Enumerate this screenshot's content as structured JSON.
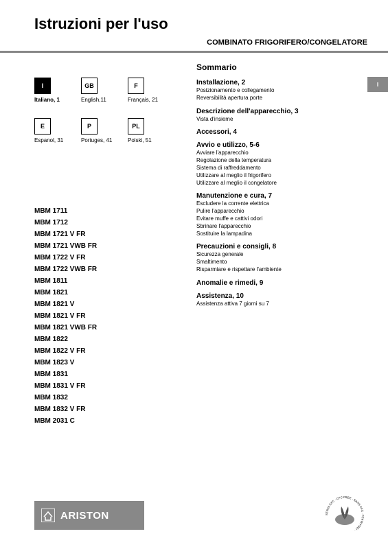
{
  "title": "Istruzioni per l'uso",
  "subtitle": "COMBINATO FRIGORIFERO/CONGELATORE",
  "side_tab": "I",
  "languages": [
    {
      "code": "I",
      "label": "Italiano, 1",
      "active": true
    },
    {
      "code": "GB",
      "label": "English,11",
      "active": false
    },
    {
      "code": "F",
      "label": "Français, 21",
      "active": false
    },
    {
      "code": "E",
      "label": "Espanol, 31",
      "active": false
    },
    {
      "code": "P",
      "label": "Portuges, 41",
      "active": false
    },
    {
      "code": "PL",
      "label": "Polski, 51",
      "active": false
    }
  ],
  "models": [
    "MBM 1711",
    "MBM 1712",
    "MBM 1721 V FR",
    "MBM 1721 VWB FR",
    "MBM 1722 V FR",
    "MBM 1722 VWB FR",
    "MBM 1811",
    "MBM 1821",
    "MBM 1821 V",
    "MBM 1821 V FR",
    "MBM 1821 VWB FR",
    "MBM 1822",
    "MBM 1822 V FR",
    "MBM 1823 V",
    "MBM 1831",
    "MBM 1831 V FR",
    "MBM 1832",
    "MBM 1832 V FR",
    "MBM 2031 C"
  ],
  "summary_title": "Sommario",
  "sections": [
    {
      "head": "Installazione, 2",
      "items": [
        "Posizionamento e collegamento",
        "Reversibilità apertura porte"
      ]
    },
    {
      "head": "Descrizione dell'apparecchio, 3",
      "items": [
        "Vista d'insieme"
      ]
    },
    {
      "head": "Accessori, 4",
      "items": []
    },
    {
      "head": "Avvio e utilizzo, 5-6",
      "items": [
        "Avviare l'apparecchio",
        "Regolazione della temperatura",
        "Sistema di raffreddamento",
        "Utilizzare al meglio il frigorifero",
        "Utilizzare al meglio il congelatore"
      ]
    },
    {
      "head": "Manutenzione e cura, 7",
      "items": [
        "Escludere la corrente elettrica",
        "Pulire l'apparecchio",
        "Evitare muffe e cattivi odori",
        "Sbrinare l'apparecchio",
        "Sostituire la lampadina"
      ]
    },
    {
      "head": "Precauzioni e consigli, 8",
      "items": [
        "Sicurezza generale",
        "Smaltimento",
        "Risparmiare e rispettare l'ambiente"
      ]
    },
    {
      "head": "Anomalie e rimedi, 9",
      "items": []
    },
    {
      "head": "Assistenza, 10",
      "items": [
        "Assistenza attiva 7 giorni su 7"
      ]
    }
  ],
  "brand": "ARISTON",
  "eco_text": "SENZA CFC · CFC FREE · SANS CFC · FCKW FREI ·",
  "colors": {
    "grey": "#888888"
  }
}
